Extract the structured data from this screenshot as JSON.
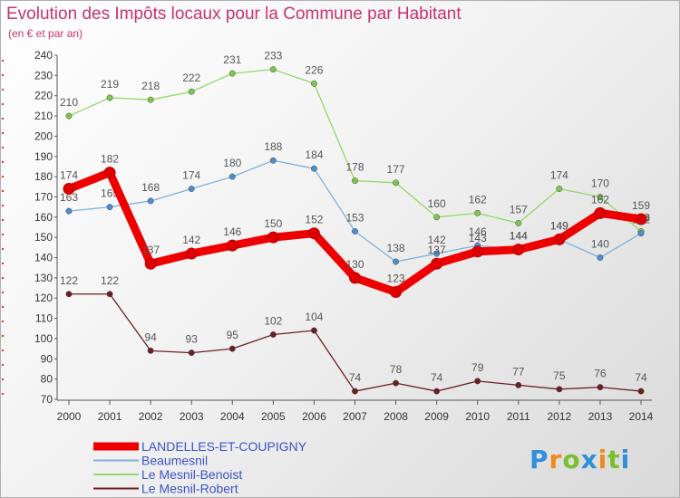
{
  "header": {
    "title": "Evolution des Impôts locaux pour la Commune par Habitant",
    "subtitle": "(en € et par an)"
  },
  "logo": {
    "text": "Proxiti",
    "colors": [
      "#2f8fd8",
      "#f08a1c",
      "#7bbf2e"
    ]
  },
  "chart_data": {
    "type": "line",
    "title": "Evolution des Impôts locaux pour la Commune par Habitant",
    "subtitle": "(en € et par an)",
    "xlabel": "",
    "ylabel": "",
    "ylim": [
      70,
      240
    ],
    "ytick_step": 10,
    "grid": false,
    "legend_position": "bottom-left",
    "x": [
      "2000",
      "2001",
      "2002",
      "2003",
      "2004",
      "2005",
      "2006",
      "2007",
      "2008",
      "2009",
      "2010",
      "2011",
      "2012",
      "2013",
      "2014"
    ],
    "series": [
      {
        "name": "Le Mesnil-Robert",
        "color": "#6b1f24",
        "marker": "#6b1f24",
        "values": [
          122,
          122,
          94,
          93,
          95,
          102,
          104,
          74,
          78,
          74,
          79,
          77,
          75,
          76,
          74
        ]
      },
      {
        "name": "Le Mesnil-Benoist",
        "color": "#93d86a",
        "marker": "#7cc94a",
        "values": [
          210,
          219,
          218,
          222,
          231,
          233,
          226,
          178,
          177,
          160,
          162,
          157,
          174,
          170,
          153
        ]
      },
      {
        "name": "Beaumesnil",
        "color": "#7fb1dc",
        "marker": "#4a8fd0",
        "values": [
          163,
          165,
          168,
          174,
          180,
          188,
          184,
          153,
          138,
          142,
          146,
          144,
          149,
          140,
          152
        ]
      },
      {
        "name": "LANDELLES-ET-COUPIGNY",
        "color": "#ee0000",
        "marker": "#dd0000",
        "values": [
          174,
          182,
          137,
          142,
          146,
          150,
          152,
          130,
          123,
          137,
          143,
          144,
          149,
          162,
          159
        ],
        "bold": true
      }
    ],
    "legend_order": [
      "LANDELLES-ET-COUPIGNY",
      "Beaumesnil",
      "Le Mesnil-Benoist",
      "Le Mesnil-Robert"
    ]
  }
}
